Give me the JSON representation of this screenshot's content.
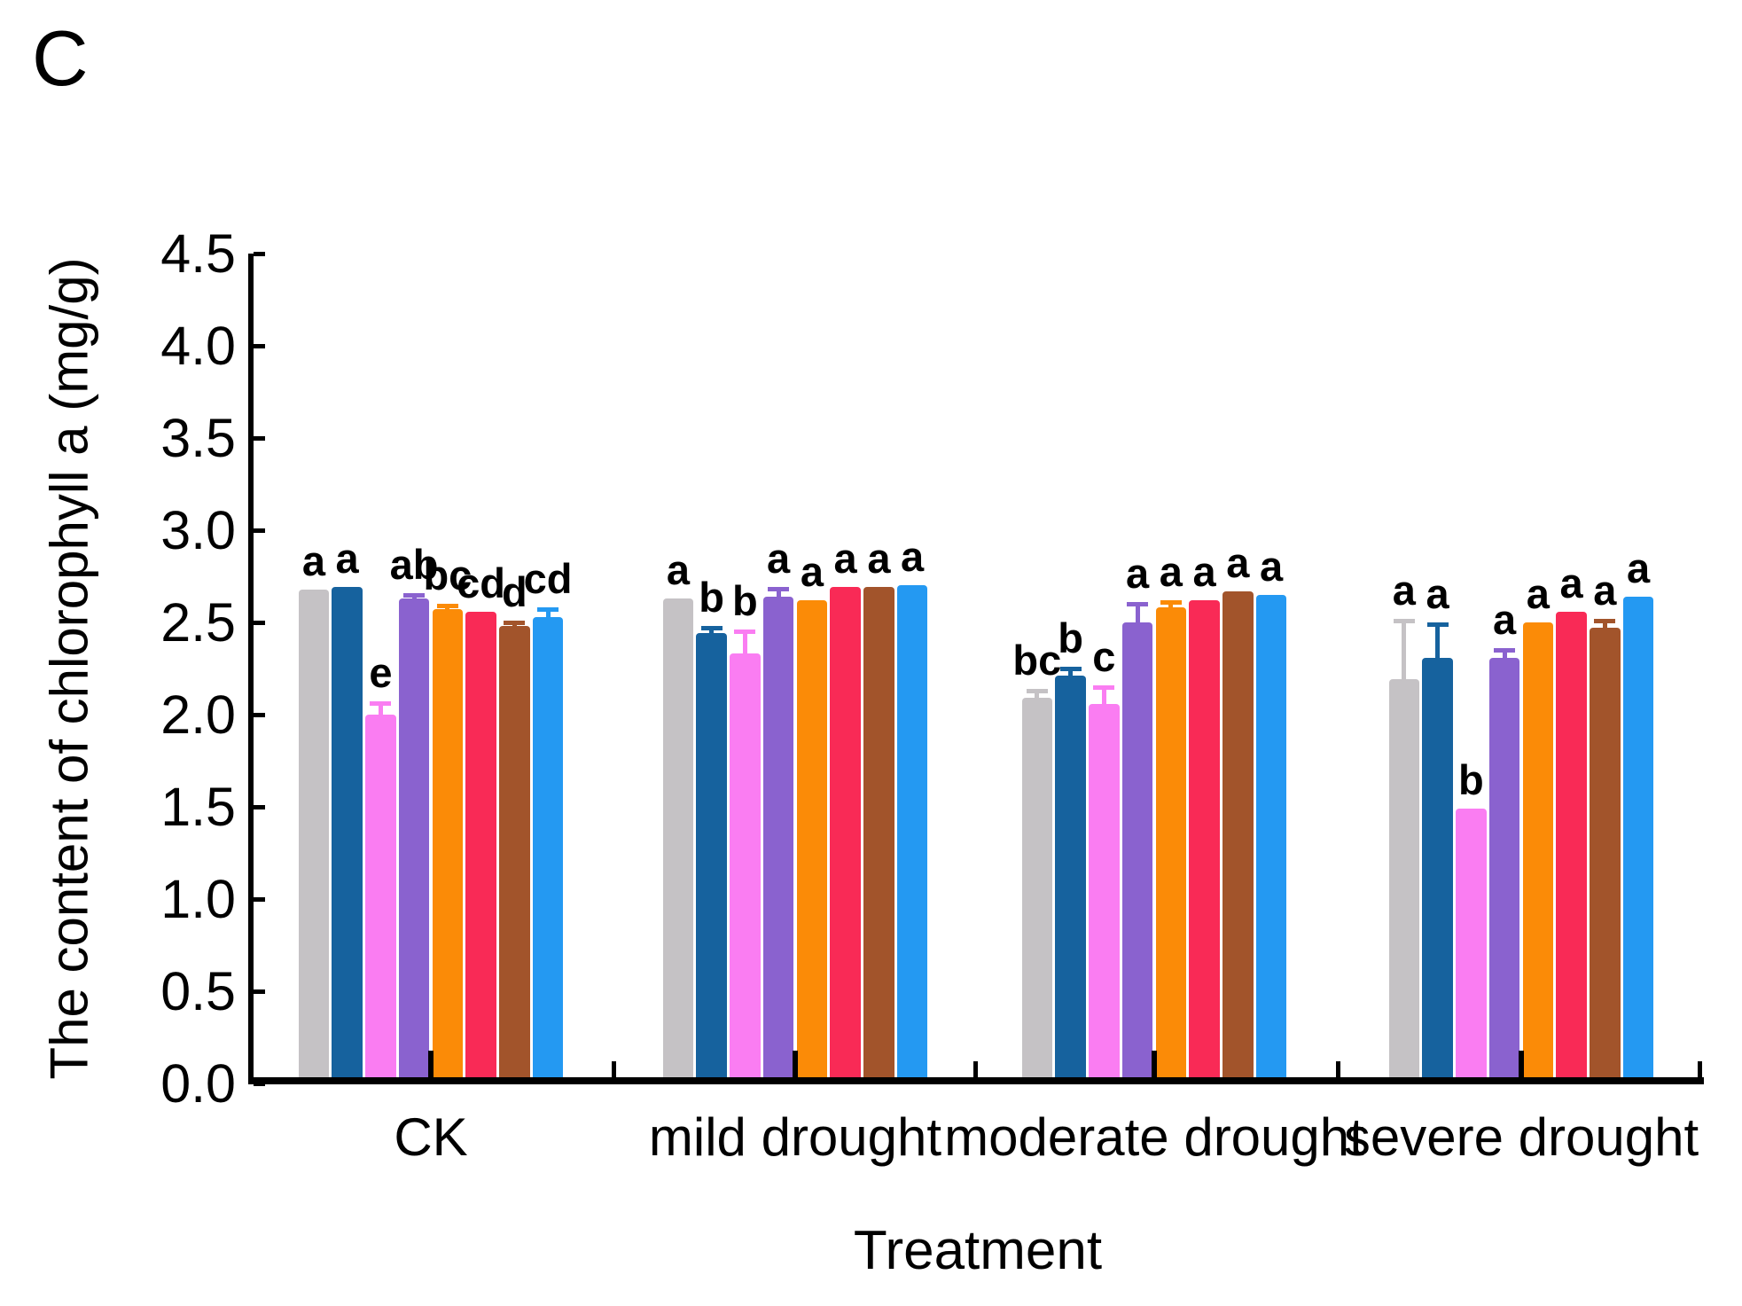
{
  "chart_data": {
    "type": "bar",
    "panel_label": "C",
    "title": "",
    "xlabel": "Treatment",
    "ylabel": "The content of chlorophyll a (mg/g)",
    "ylim": [
      0.0,
      4.5
    ],
    "ytick_step": 0.5,
    "ytick_labels": [
      "0.0",
      "0.5",
      "1.0",
      "1.5",
      "2.0",
      "2.5",
      "3.0",
      "3.5",
      "4.0",
      "4.5"
    ],
    "grid": false,
    "legend": "none",
    "categories": [
      "CK",
      "mild drought",
      "moderate drought",
      "severe drought"
    ],
    "series": [
      {
        "name": "gray",
        "color": "#c5c2c5",
        "values": [
          2.68,
          2.63,
          2.09,
          2.19
        ],
        "errors": [
          0,
          0,
          0.05,
          0.33
        ],
        "letters": [
          "a",
          "a",
          "bc",
          "a"
        ]
      },
      {
        "name": "dark-blue",
        "color": "#16629e",
        "values": [
          2.69,
          2.44,
          2.21,
          2.31
        ],
        "errors": [
          0,
          0.04,
          0.05,
          0.19
        ],
        "letters": [
          "a",
          "b",
          "b",
          "a"
        ]
      },
      {
        "name": "magenta",
        "color": "#fa7df2",
        "values": [
          2.0,
          2.33,
          2.06,
          1.49
        ],
        "errors": [
          0.07,
          0.13,
          0.1,
          0
        ],
        "letters": [
          "e",
          "b",
          "c",
          "b"
        ]
      },
      {
        "name": "purple",
        "color": "#8a62cf",
        "values": [
          2.63,
          2.64,
          2.5,
          2.31
        ],
        "errors": [
          0.03,
          0.05,
          0.11,
          0.05
        ],
        "letters": [
          "ab",
          "a",
          "a",
          "a"
        ]
      },
      {
        "name": "orange",
        "color": "#fb8b07",
        "values": [
          2.57,
          2.62,
          2.58,
          2.5
        ],
        "errors": [
          0.03,
          0,
          0.04,
          0
        ],
        "letters": [
          "bc",
          "a",
          "a",
          "a"
        ]
      },
      {
        "name": "crimson",
        "color": "#f92a56",
        "values": [
          2.56,
          2.69,
          2.62,
          2.56
        ],
        "errors": [
          0,
          0,
          0,
          0
        ],
        "letters": [
          "cd",
          "a",
          "a",
          "a"
        ]
      },
      {
        "name": "brown",
        "color": "#a2542b",
        "values": [
          2.48,
          2.69,
          2.67,
          2.47
        ],
        "errors": [
          0.03,
          0,
          0,
          0.05
        ],
        "letters": [
          "d",
          "a",
          "a",
          "a"
        ]
      },
      {
        "name": "light-blue",
        "color": "#2499f2",
        "values": [
          2.53,
          2.7,
          2.65,
          2.64
        ],
        "errors": [
          0.05,
          0,
          0,
          0
        ],
        "letters": [
          "cd",
          "a",
          "a",
          "a"
        ]
      }
    ]
  }
}
